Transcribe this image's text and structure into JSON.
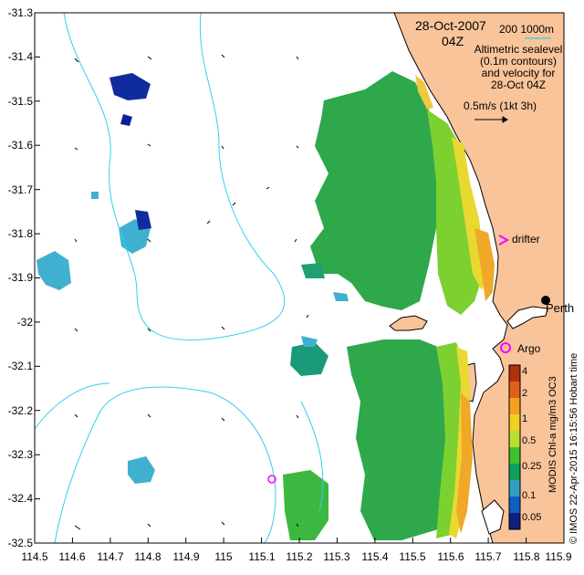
{
  "title": {
    "date": "28-Oct-2007",
    "time": "04Z"
  },
  "scale_bar": {
    "text": "200  1000m",
    "color": "#4fd0e0"
  },
  "legend": {
    "lines": [
      "Altimetric sealevel",
      "(0.1m contours)",
      "and velocity for",
      "28-Oct 04Z"
    ],
    "vector_label": "0.5m/s (1kt 3h)"
  },
  "axes": {
    "x_ticks": [
      "114.5",
      "114.6",
      "114.7",
      "114.8",
      "114.9",
      "115",
      "115.1",
      "115.2",
      "115.3",
      "115.4",
      "115.5",
      "115.6",
      "115.7",
      "115.8",
      "115.9"
    ],
    "y_ticks": [
      "-31.3",
      "-31.4",
      "-31.5",
      "-31.6",
      "-31.7",
      "-31.8",
      "-31.9",
      "-32",
      "-32.1",
      "-32.2",
      "-32.3",
      "-32.4",
      "-32.5"
    ],
    "xlim": [
      114.5,
      115.9
    ],
    "ylim": [
      -32.5,
      -31.3
    ]
  },
  "markers": {
    "drifter": {
      "label": "drifter",
      "lon": 115.76,
      "lat": -31.81,
      "color": "#ff00ff"
    },
    "argo": {
      "label": "Argo",
      "lon": 115.745,
      "lat": -32.07,
      "color": "#ff00ff"
    },
    "perth": {
      "label": "Perth",
      "lon": 115.86,
      "lat": -31.95
    },
    "float2": {
      "lon": 115.13,
      "lat": -32.365,
      "color": "#ff00ff"
    }
  },
  "colorbar": {
    "title": "MODIS Chl-a mg/m3 OC3",
    "ticks": [
      "4",
      "2",
      "1",
      "0.5",
      "0.25",
      "0.1",
      "0.05"
    ],
    "colors": [
      "#b03010",
      "#e0601a",
      "#f5a020",
      "#f0d020",
      "#b8e030",
      "#40c030",
      "#10a060",
      "#30a0c0",
      "#1060c0",
      "#102080"
    ]
  },
  "credit": "© IMOS 22-Apr-2015 16:15:56 Hobart time",
  "colors": {
    "land": "#f9c49a",
    "contour": "#30d0f0",
    "coast": "#000000"
  }
}
